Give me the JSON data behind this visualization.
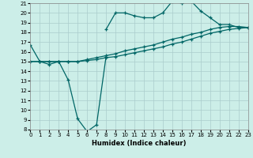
{
  "title": "",
  "xlabel": "Humidex (Indice chaleur)",
  "background_color": "#cceee8",
  "grid_color": "#aacccc",
  "line_color": "#006666",
  "xlim": [
    0,
    23
  ],
  "ylim": [
    8,
    21
  ],
  "yticks": [
    8,
    9,
    10,
    11,
    12,
    13,
    14,
    15,
    16,
    17,
    18,
    19,
    20,
    21
  ],
  "xticks": [
    0,
    1,
    2,
    3,
    4,
    5,
    6,
    7,
    8,
    9,
    10,
    11,
    12,
    13,
    14,
    15,
    16,
    17,
    18,
    19,
    20,
    21,
    22,
    23
  ],
  "line1_x": [
    0,
    1,
    2,
    3,
    4,
    5,
    6,
    7,
    8
  ],
  "line1_y": [
    16.7,
    15.0,
    14.7,
    15.0,
    13.1,
    9.1,
    7.8,
    8.5,
    15.5
  ],
  "line2_x": [
    8,
    9,
    10,
    11,
    12,
    13,
    14,
    15,
    16,
    17,
    18,
    19,
    20,
    21,
    22,
    23
  ],
  "line2_y": [
    18.3,
    20.0,
    20.0,
    19.7,
    19.5,
    19.5,
    20.0,
    21.2,
    21.0,
    21.2,
    20.2,
    19.5,
    18.8,
    18.8,
    18.5,
    18.5
  ],
  "line3_x": [
    0,
    1,
    2,
    3,
    4,
    5,
    6,
    7,
    8,
    9,
    10,
    11,
    12,
    13,
    14,
    15,
    16,
    17,
    18,
    19,
    20,
    21,
    22,
    23
  ],
  "line3_y": [
    15.0,
    15.0,
    15.0,
    15.0,
    15.0,
    15.0,
    15.2,
    15.4,
    15.6,
    15.8,
    16.1,
    16.3,
    16.5,
    16.7,
    17.0,
    17.3,
    17.5,
    17.8,
    18.0,
    18.3,
    18.5,
    18.6,
    18.6,
    18.5
  ],
  "line4_x": [
    0,
    1,
    2,
    3,
    4,
    5,
    6,
    7,
    8,
    9,
    10,
    11,
    12,
    13,
    14,
    15,
    16,
    17,
    18,
    19,
    20,
    21,
    22,
    23
  ],
  "line4_y": [
    15.0,
    15.0,
    15.0,
    15.0,
    15.0,
    15.0,
    15.1,
    15.2,
    15.4,
    15.5,
    15.7,
    15.9,
    16.1,
    16.3,
    16.5,
    16.8,
    17.0,
    17.3,
    17.6,
    17.9,
    18.1,
    18.3,
    18.4,
    18.5
  ]
}
